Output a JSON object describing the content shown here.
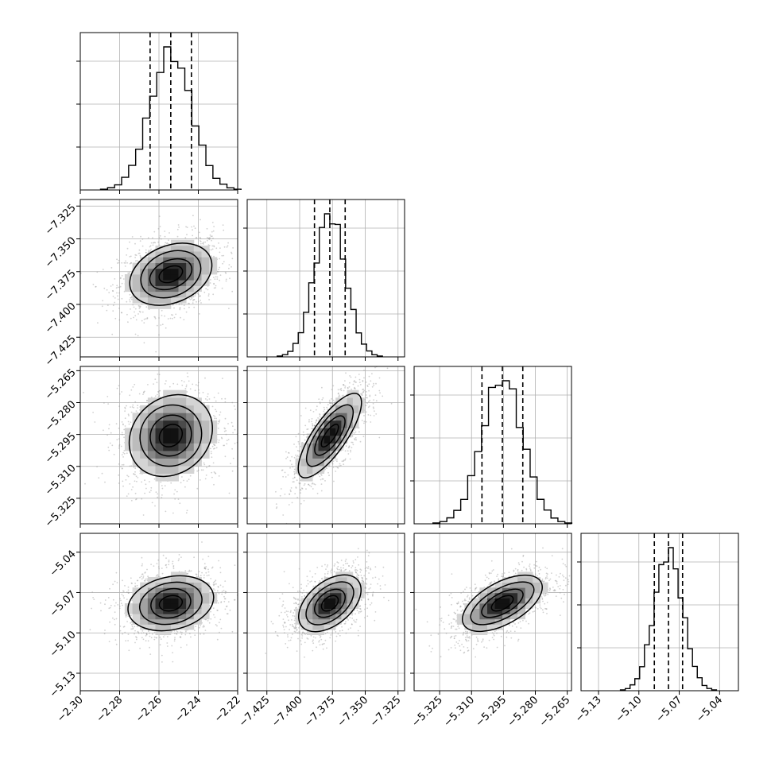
{
  "chart_data": {
    "type": "corner",
    "params": [
      {
        "mean": -2.254,
        "sd": 0.0105,
        "q": [
          -2.2645,
          -2.254,
          -2.2435
        ],
        "range": [
          -2.3,
          -2.22
        ],
        "ticks": [
          "−2.30",
          "−2.28",
          "−2.26",
          "−2.24",
          "−2.22"
        ]
      },
      {
        "mean": -7.377,
        "sd": 0.0118,
        "q": [
          -7.3887,
          -7.377,
          -7.3653
        ],
        "range": [
          -7.44,
          -7.32
        ],
        "ticks": [
          "−7.425",
          "−7.400",
          "−7.375",
          "−7.350",
          "−7.325"
        ]
      },
      {
        "mean": -5.2955,
        "sd": 0.0096,
        "q": [
          -5.3051,
          -5.2955,
          -5.2859
        ],
        "range": [
          -5.337,
          -5.263
        ],
        "ticks": [
          "−5.325",
          "−5.310",
          "−5.295",
          "−5.280",
          "−5.265"
        ]
      },
      {
        "mean": -5.078,
        "sd": 0.0105,
        "q": [
          -5.0885,
          -5.078,
          -5.0675
        ],
        "range": [
          -5.143,
          -5.026
        ],
        "ticks": [
          "−5.13",
          "−5.10",
          "−5.07",
          "−5.04"
        ]
      }
    ],
    "correlations": {
      "1-0": 0.3,
      "2-0": 0.12,
      "2-1": 0.75,
      "3-0": 0.18,
      "3-1": 0.45,
      "3-2": 0.6
    },
    "quantile_lines": [
      0.16,
      0.5,
      0.84
    ],
    "histogram_bins": 20,
    "contour_levels": 4,
    "grid": true
  }
}
